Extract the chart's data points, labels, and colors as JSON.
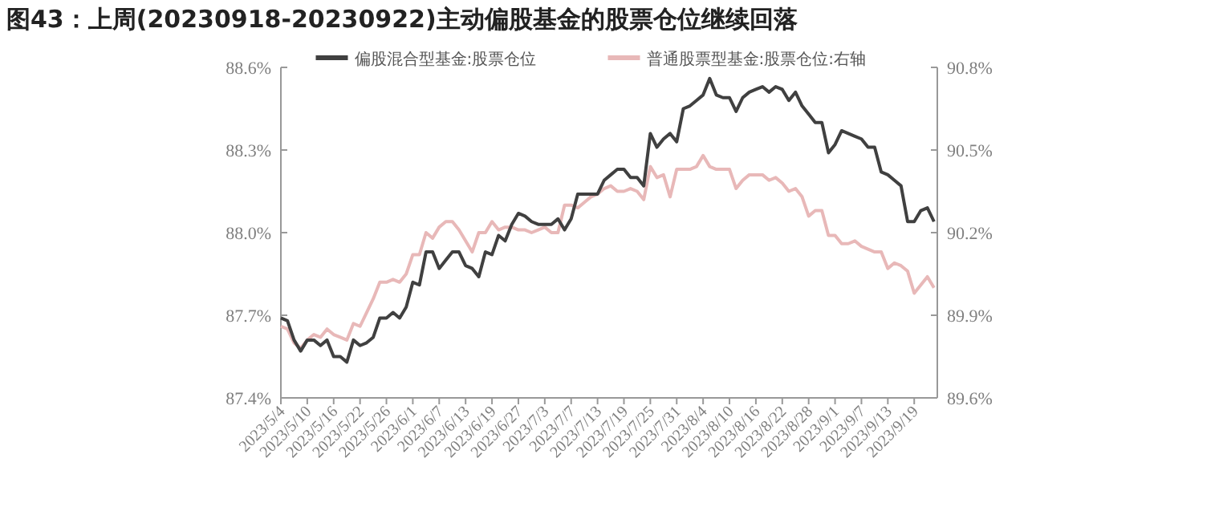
{
  "chart_data": {
    "type": "line",
    "title": "图43：上周(20230918-20230922)主动偏股基金的股票仓位继续回落",
    "categories": [
      "2023/5/4",
      null,
      null,
      null,
      "2023/5/10",
      null,
      null,
      null,
      "2023/5/16",
      null,
      null,
      null,
      "2023/5/22",
      null,
      null,
      null,
      "2023/5/26",
      null,
      null,
      null,
      "2023/6/1",
      null,
      null,
      null,
      "2023/6/7",
      null,
      null,
      null,
      "2023/6/13",
      null,
      null,
      null,
      "2023/6/19",
      null,
      null,
      null,
      "2023/6/27",
      null,
      null,
      null,
      "2023/7/3",
      null,
      null,
      null,
      "2023/7/7",
      null,
      null,
      null,
      "2023/7/13",
      null,
      null,
      null,
      "2023/7/19",
      null,
      null,
      null,
      "2023/7/25",
      null,
      null,
      null,
      "2023/7/31",
      null,
      null,
      null,
      "2023/8/4",
      null,
      null,
      null,
      "2023/8/10",
      null,
      null,
      null,
      "2023/8/16",
      null,
      null,
      null,
      "2023/8/22",
      null,
      null,
      null,
      "2023/8/28",
      null,
      null,
      null,
      "2023/9/1",
      null,
      null,
      null,
      "2023/9/7",
      null,
      null,
      null,
      "2023/9/13",
      null,
      null,
      null,
      "2023/9/19",
      null,
      null,
      null
    ],
    "series": [
      {
        "name": "偏股混合型基金:股票仓位",
        "color": "#404040",
        "values": [
          87.69,
          87.68,
          87.61,
          87.57,
          87.61,
          87.61,
          87.59,
          87.61,
          87.55,
          87.55,
          87.53,
          87.61,
          87.59,
          87.6,
          87.62,
          87.69,
          87.69,
          87.71,
          87.69,
          87.73,
          87.82,
          87.81,
          87.93,
          87.93,
          87.87,
          87.9,
          87.93,
          87.93,
          87.88,
          87.87,
          87.84,
          87.93,
          87.92,
          87.99,
          87.97,
          88.03,
          88.07,
          88.06,
          88.04,
          88.03,
          88.03,
          88.03,
          88.05,
          88.01,
          88.05,
          88.14,
          88.14,
          88.14,
          88.14,
          88.19,
          88.21,
          88.23,
          88.23,
          88.2,
          88.2,
          88.17,
          88.36,
          88.31,
          88.34,
          88.36,
          88.33,
          88.45,
          88.46,
          88.48,
          88.5,
          88.56,
          88.5,
          88.49,
          88.49,
          88.44,
          88.49,
          88.51,
          88.52,
          88.53,
          88.51,
          88.53,
          88.52,
          88.48,
          88.51,
          88.46,
          88.43,
          88.4,
          88.4,
          88.29,
          88.32,
          88.37,
          88.36,
          88.35,
          88.34,
          88.31,
          88.31,
          88.22,
          88.21,
          88.19,
          88.17,
          88.04,
          88.04,
          88.08,
          88.09,
          88.04
        ]
      },
      {
        "name": "普通股票型基金:股票仓位:右轴",
        "color": "#e8b8b8",
        "axis": "y2",
        "values": [
          89.86,
          89.85,
          89.8,
          89.78,
          89.81,
          89.83,
          89.82,
          89.85,
          89.83,
          89.82,
          89.81,
          89.87,
          89.86,
          89.91,
          89.96,
          90.02,
          90.02,
          90.03,
          90.02,
          90.05,
          90.12,
          90.12,
          90.2,
          90.18,
          90.22,
          90.24,
          90.24,
          90.21,
          90.17,
          90.13,
          90.2,
          90.2,
          90.24,
          90.21,
          90.22,
          90.22,
          90.21,
          90.21,
          90.2,
          90.21,
          90.22,
          90.2,
          90.2,
          90.3,
          90.3,
          90.29,
          90.31,
          90.33,
          90.34,
          90.36,
          90.37,
          90.35,
          90.35,
          90.36,
          90.35,
          90.32,
          90.44,
          90.4,
          90.41,
          90.33,
          90.43,
          90.43,
          90.43,
          90.44,
          90.48,
          90.44,
          90.43,
          90.43,
          90.43,
          90.36,
          90.39,
          90.41,
          90.41,
          90.41,
          90.39,
          90.4,
          90.38,
          90.35,
          90.36,
          90.33,
          90.26,
          90.28,
          90.28,
          90.19,
          90.19,
          90.16,
          90.16,
          90.17,
          90.15,
          90.14,
          90.13,
          90.13,
          90.07,
          90.09,
          90.08,
          90.06,
          89.98,
          90.01,
          90.04,
          90.0
        ]
      }
    ],
    "ylim": [
      87.4,
      88.6
    ],
    "yticks": [
      {
        "value": 87.4,
        "label": "87.4%"
      },
      {
        "value": 87.7,
        "label": "87.7%"
      },
      {
        "value": 88.0,
        "label": "88.0%"
      },
      {
        "value": 88.3,
        "label": "88.3%"
      },
      {
        "value": 88.6,
        "label": "88.6%"
      }
    ],
    "y2lim": [
      89.6,
      90.8
    ],
    "y2ticks": [
      {
        "value": 89.6,
        "label": "89.6%"
      },
      {
        "value": 89.9,
        "label": "89.9%"
      },
      {
        "value": 90.2,
        "label": "90.2%"
      },
      {
        "value": 90.5,
        "label": "90.5%"
      },
      {
        "value": 90.8,
        "label": "90.8%"
      }
    ],
    "legend": "top"
  }
}
